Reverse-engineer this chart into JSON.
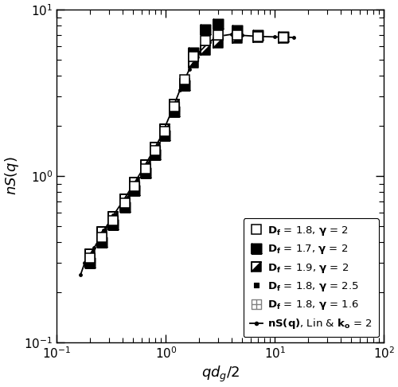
{
  "title": "",
  "xlabel": "$qd_g/2$",
  "ylabel": "$nS(q)$",
  "xlim": [
    0.1,
    100
  ],
  "ylim": [
    0.1,
    10
  ],
  "background_color": "#ffffff",
  "line_x": [
    0.165,
    0.18,
    0.22,
    0.27,
    0.33,
    0.4,
    0.5,
    0.6,
    0.75,
    0.9,
    1.1,
    1.35,
    1.65,
    2.0,
    2.5,
    3.0,
    4.0,
    5.0,
    7.0,
    10.0,
    15.0
  ],
  "line_y": [
    0.255,
    0.3,
    0.37,
    0.47,
    0.58,
    0.7,
    0.88,
    1.07,
    1.38,
    1.72,
    2.35,
    3.3,
    4.4,
    5.5,
    6.4,
    6.9,
    7.1,
    7.0,
    6.9,
    6.85,
    6.8
  ],
  "df18g2_x": [
    0.2,
    0.26,
    0.33,
    0.42,
    0.52,
    0.65,
    0.8,
    0.97,
    1.2,
    1.5,
    1.8,
    2.3,
    3.0,
    4.5,
    7.0,
    12.0
  ],
  "df18g2_y": [
    0.32,
    0.43,
    0.54,
    0.69,
    0.87,
    1.1,
    1.42,
    1.85,
    2.6,
    3.8,
    5.2,
    6.5,
    7.0,
    7.05,
    6.85,
    6.8
  ],
  "df17g2_x": [
    0.2,
    0.26,
    0.33,
    0.42,
    0.52,
    0.65,
    0.8,
    0.97,
    1.2,
    1.5,
    1.8,
    2.3,
    3.0,
    4.5,
    7.0,
    12.0
  ],
  "df17g2_y": [
    0.3,
    0.4,
    0.51,
    0.65,
    0.82,
    1.05,
    1.35,
    1.75,
    2.45,
    3.5,
    5.5,
    7.6,
    8.2,
    7.5,
    7.0,
    6.85
  ],
  "df19g2_x": [
    0.2,
    0.26,
    0.33,
    0.42,
    0.52,
    0.65,
    0.8,
    0.97,
    1.2,
    1.5,
    1.8,
    2.3,
    3.0,
    4.5,
    7.0,
    12.0
  ],
  "df19g2_y": [
    0.34,
    0.46,
    0.57,
    0.73,
    0.92,
    1.16,
    1.48,
    1.92,
    2.7,
    3.6,
    4.8,
    5.7,
    6.3,
    6.75,
    6.8,
    6.75
  ],
  "df18g25_x": [
    0.2,
    0.26,
    0.33,
    0.42,
    0.52,
    0.65,
    0.8,
    0.97,
    1.2,
    1.5,
    1.8,
    2.3,
    3.0,
    4.5,
    7.0,
    12.0
  ],
  "df18g25_y": [
    0.32,
    0.43,
    0.54,
    0.69,
    0.87,
    1.1,
    1.42,
    1.85,
    2.6,
    3.8,
    5.2,
    6.5,
    7.0,
    7.05,
    6.85,
    6.8
  ],
  "df18g16_x": [
    0.2,
    0.33,
    0.52,
    0.8,
    1.2,
    1.8,
    3.0,
    7.0
  ],
  "df18g16_y": [
    0.32,
    0.54,
    0.87,
    1.42,
    2.6,
    5.2,
    7.0,
    6.85
  ],
  "legend_labels": [
    "$\\mathbf{D_f}$ = 1.8, $\\mathbf{\\gamma}$ = 2",
    "$\\mathbf{D_f}$ = 1.7, $\\mathbf{\\gamma}$ = 2",
    "$\\mathbf{D_f}$ = 1.9, $\\mathbf{\\gamma}$ = 2",
    "$\\mathbf{D_f}$ = 1.8, $\\mathbf{\\gamma}$ = 2.5",
    "$\\mathbf{D_f}$ = 1.8, $\\mathbf{\\gamma}$ = 1.6",
    "$\\mathbf{nS(q)}$, Lin & $\\mathbf{k_o}$ = 2"
  ]
}
